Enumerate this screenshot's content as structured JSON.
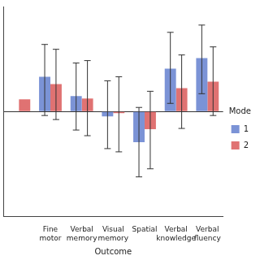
{
  "chart_data": {
    "type": "bar",
    "x_label": "Outcome",
    "categories": [
      null,
      "Fine motor",
      "Verbal memory",
      "Visual memory",
      "Spatial",
      "Verbal knowledge",
      "Verbal fluency"
    ],
    "series": [
      {
        "name": "1",
        "color": "#7b93d6",
        "values": [
          null,
          0.086,
          0.038,
          -0.012,
          -0.076,
          0.106,
          0.132
        ],
        "error_low": [
          null,
          -0.01,
          -0.046,
          -0.092,
          -0.162,
          0.02,
          0.044
        ],
        "error_high": [
          null,
          0.166,
          0.12,
          0.076,
          0.01,
          0.196,
          0.214
        ]
      },
      {
        "name": "2",
        "color": "#e07272",
        "values": [
          0.03,
          0.068,
          0.032,
          -0.004,
          -0.044,
          0.058,
          0.074
        ],
        "error_low": [
          null,
          -0.02,
          -0.06,
          -0.1,
          -0.142,
          -0.042,
          -0.01
        ],
        "error_high": [
          null,
          0.154,
          0.126,
          0.086,
          0.05,
          0.14,
          0.16
        ]
      }
    ],
    "ylim": [
      -0.26,
      0.26
    ],
    "yticks": [
      0
    ],
    "tick_labels": "x",
    "legend": "right",
    "legend_title": "Mode"
  }
}
